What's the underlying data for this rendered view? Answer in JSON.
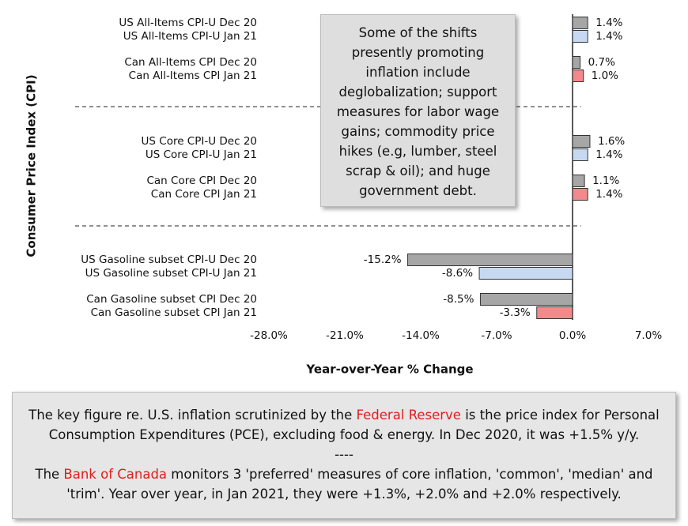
{
  "chart_data": {
    "type": "hbar",
    "categories": [
      "US All-Items CPI-U Dec 20",
      "US All-Items CPI-U Jan 21",
      "Can All-Items CPI Dec 20",
      "Can All-Items CPI Jan 21",
      "US Core CPI-U Dec 20",
      "US Core CPI-U Jan 21",
      "Can Core CPI Dec 20",
      "Can Core CPI Jan 21",
      "US Gasoline subset CPI-U Dec 20",
      "US Gasoline subset CPI-U Jan 21",
      "Can Gasoline subset CPI Dec 20",
      "Can Gasoline subset CPI Jan 21"
    ],
    "values": [
      1.4,
      1.4,
      0.7,
      1.0,
      1.6,
      1.4,
      1.1,
      1.4,
      -15.2,
      -8.6,
      -8.5,
      -3.3
    ],
    "value_labels": [
      "1.4%",
      "1.4%",
      "0.7%",
      "1.0%",
      "1.6%",
      "1.4%",
      "1.1%",
      "1.4%",
      "-15.2%",
      "-8.6%",
      "-8.5%",
      "-3.3%"
    ],
    "colors": [
      "#a6a6a6",
      "#c6d9f1",
      "#a6a6a6",
      "#f4898b",
      "#a6a6a6",
      "#c6d9f1",
      "#a6a6a6",
      "#f4898b",
      "#a6a6a6",
      "#c6d9f1",
      "#a6a6a6",
      "#f4898b"
    ],
    "xlim": [
      -28,
      7
    ],
    "xticks": [
      {
        "value": -28,
        "label": "-28.0%"
      },
      {
        "value": -21,
        "label": "-21.0%"
      },
      {
        "value": -14,
        "label": "-14.0%"
      },
      {
        "value": -7,
        "label": "-7.0%"
      },
      {
        "value": 0,
        "label": "0.0%"
      },
      {
        "value": 7,
        "label": "7.0%"
      }
    ],
    "xlabel": "Year-over-Year % Change",
    "ylabel": "Consumer Price Index (CPI)",
    "annotation": "Some of the shifts presently promoting inflation include deglobalization; support measures for labor wage gains; commodity price hikes (e.g, lumber, steel scrap & oil); and huge government debt."
  },
  "footnote": {
    "p1": [
      "The key figure re. U.S. inflation scrutinized by the ",
      "Federal Reserve",
      " is the price index for Personal Consumption Expenditures (PCE), excluding food & energy. In Dec 2020, it was +1.5% y/y."
    ],
    "separator": "----",
    "p2": [
      "The ",
      "Bank of Canada",
      " monitors 3 'preferred' measures of core inflation, 'common', 'median' and 'trim'. Year over year, in Jan 2021, they were +1.3%, +2.0% and +2.0% respectively."
    ]
  }
}
